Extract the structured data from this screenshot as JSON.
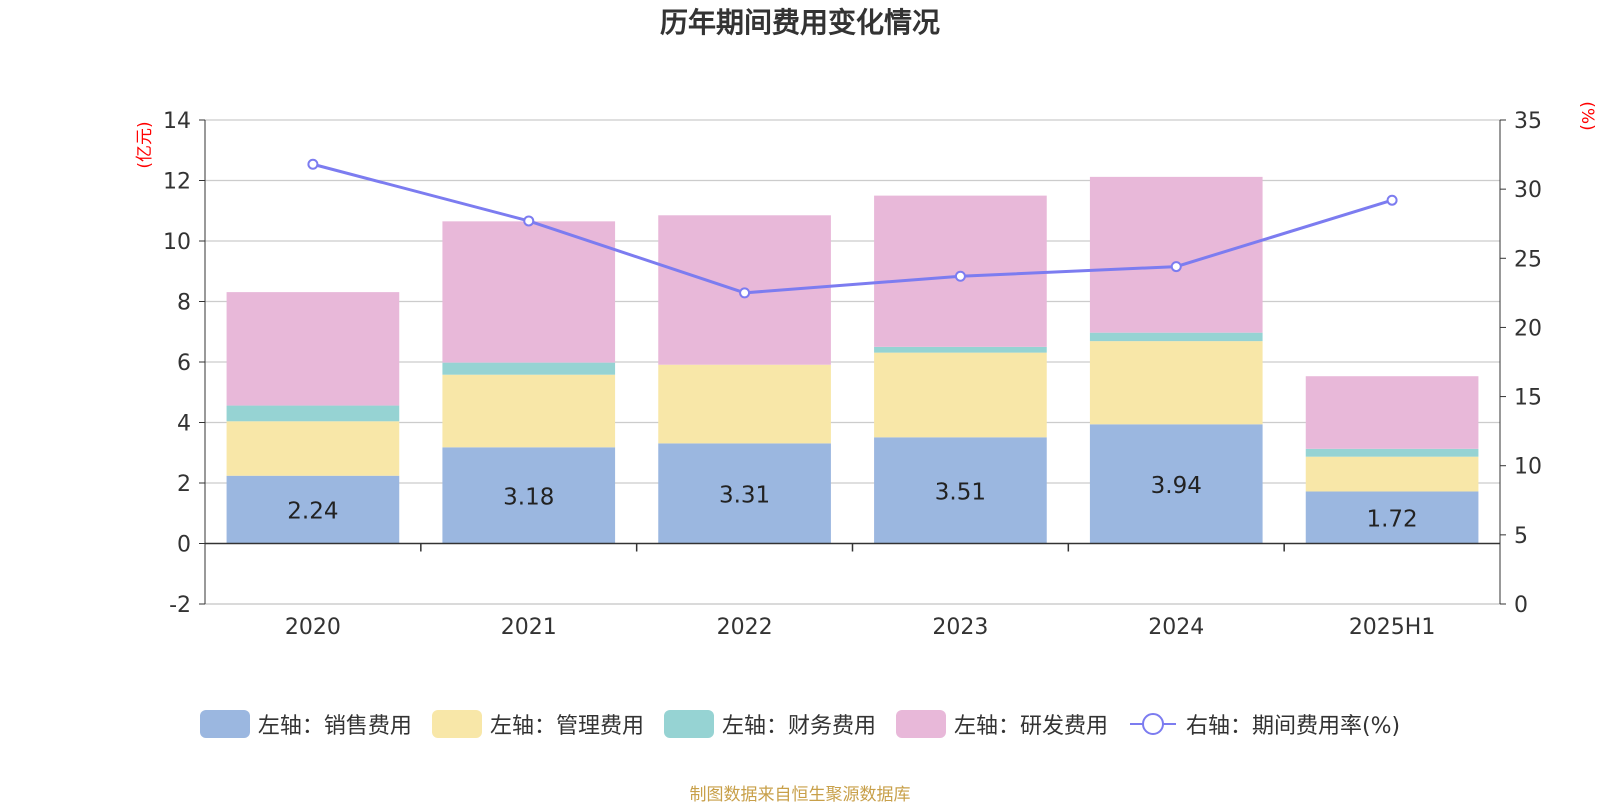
{
  "title": "历年期间费用变化情况",
  "left_axis_unit": "(亿元)",
  "right_axis_unit": "(%)",
  "source_note": "制图数据来自恒生聚源数据库",
  "colors": {
    "sales": "#9bb7e0",
    "admin": "#f8e7a8",
    "finance": "#96d3d3",
    "rd": "#e8b8d9",
    "rate": "#7c7cf0",
    "axis_unit": "#ff0000",
    "source": "#c8a04a"
  },
  "legend": [
    {
      "label": "左轴：销售费用",
      "type": "swatch",
      "color_key": "sales"
    },
    {
      "label": "左轴：管理费用",
      "type": "swatch",
      "color_key": "admin"
    },
    {
      "label": "左轴：财务费用",
      "type": "swatch",
      "color_key": "finance"
    },
    {
      "label": "左轴：研发费用",
      "type": "swatch",
      "color_key": "rd"
    },
    {
      "label": "右轴：期间费用率(%)",
      "type": "line",
      "color_key": "rate"
    }
  ],
  "chart_data": {
    "type": "bar",
    "stacked": true,
    "categories": [
      "2020",
      "2021",
      "2022",
      "2023",
      "2024",
      "2025H1"
    ],
    "series": [
      {
        "name": "左轴：销售费用",
        "axis": "left",
        "values": [
          2.24,
          3.18,
          3.31,
          3.51,
          3.94,
          1.72
        ],
        "labels": [
          "2.24",
          "3.18",
          "3.31",
          "3.51",
          "3.94",
          "1.72"
        ]
      },
      {
        "name": "左轴：管理费用",
        "axis": "left",
        "values": [
          1.8,
          2.4,
          2.6,
          2.8,
          2.75,
          1.15
        ]
      },
      {
        "name": "左轴：财务费用",
        "axis": "left",
        "values": [
          0.52,
          0.4,
          0.0,
          0.19,
          0.28,
          0.26
        ]
      },
      {
        "name": "左轴：研发费用",
        "axis": "left",
        "values": [
          3.75,
          4.67,
          4.94,
          5.0,
          5.15,
          2.4
        ]
      }
    ],
    "line_series": {
      "name": "右轴：期间费用率(%)",
      "axis": "right",
      "values": [
        31.8,
        27.7,
        22.5,
        23.7,
        24.4,
        29.2
      ]
    },
    "left_axis": {
      "min": -2,
      "max": 14,
      "ticks": [
        "-2",
        "0",
        "2",
        "4",
        "6",
        "8",
        "10",
        "12",
        "14"
      ]
    },
    "right_axis": {
      "min": 0,
      "max": 35,
      "ticks": [
        "0",
        "5",
        "10",
        "15",
        "20",
        "25",
        "30",
        "35"
      ]
    },
    "grid": true,
    "legend_position": "bottom"
  }
}
